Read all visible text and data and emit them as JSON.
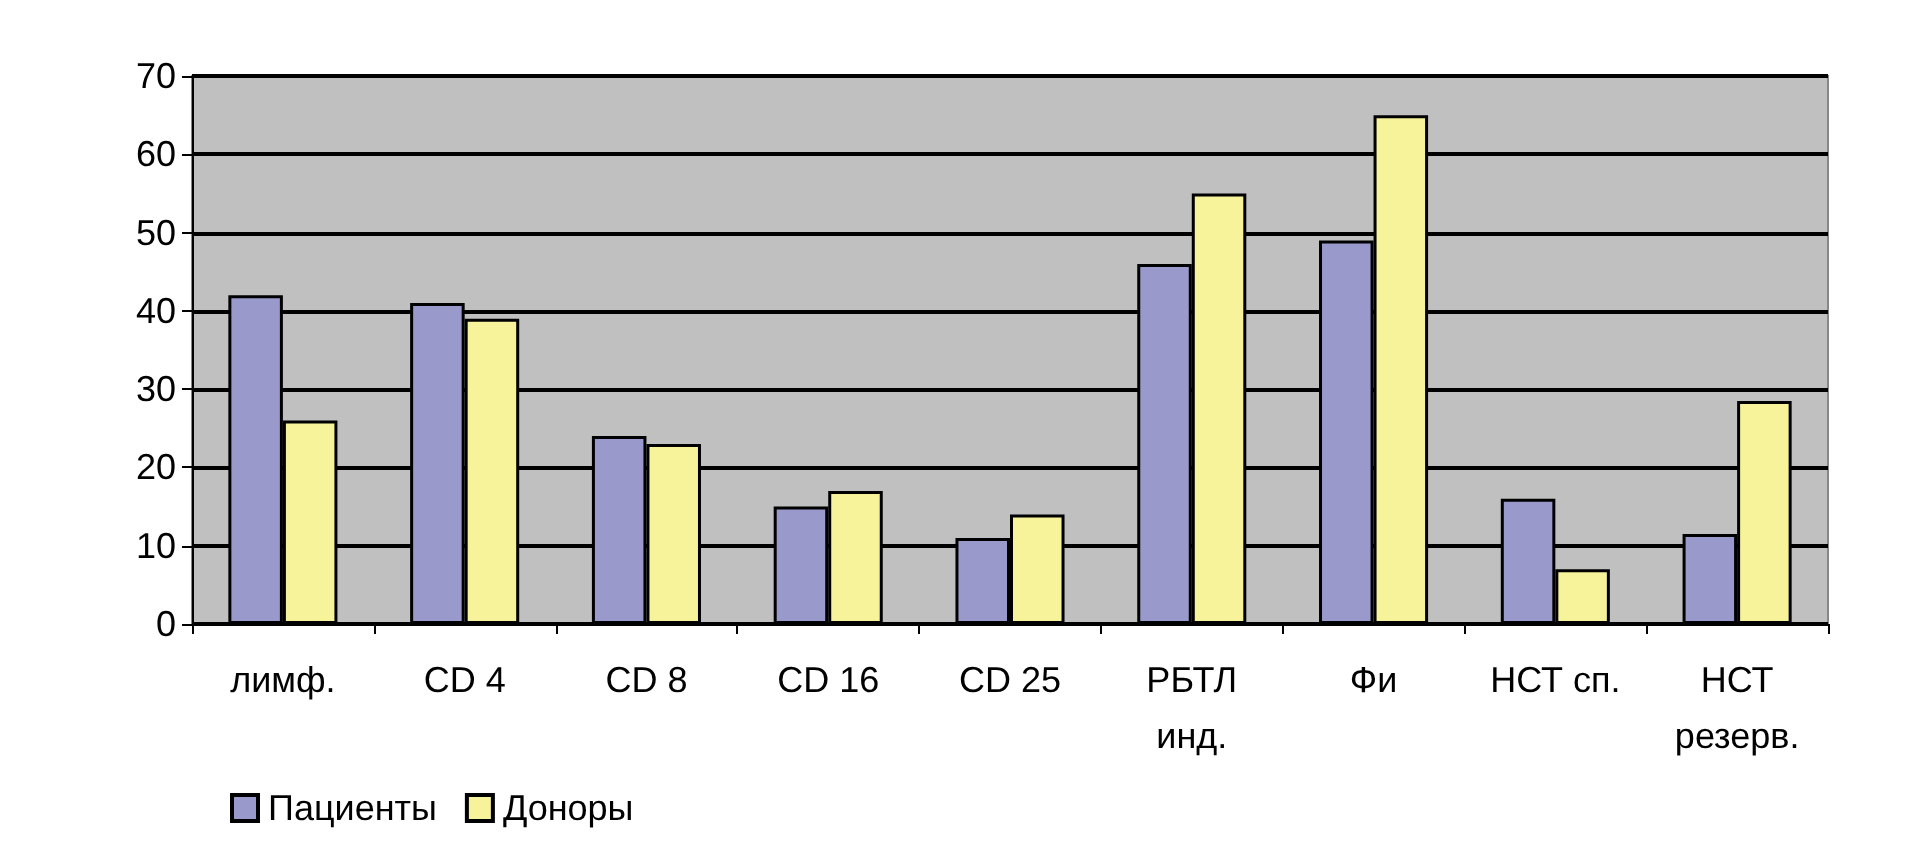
{
  "chart_data": {
    "type": "bar",
    "categories": [
      "лимф.",
      "CD 4",
      "CD 8",
      "CD 16",
      "CD 25",
      "РБТЛ\nинд.",
      "Фи",
      "НСТ сп.",
      "НСТ\nрезерв."
    ],
    "series": [
      {
        "name": "Пациенты",
        "color": "#9999cc",
        "values": [
          42,
          41,
          24,
          15,
          11,
          46,
          49,
          16,
          11.5
        ]
      },
      {
        "name": "Доноры",
        "color": "#f7f39a",
        "values": [
          26,
          39,
          23,
          17,
          14,
          55,
          65,
          7,
          28.5
        ]
      }
    ],
    "ylim": [
      0,
      70
    ],
    "yticks": [
      0,
      10,
      20,
      30,
      40,
      50,
      60,
      70
    ],
    "grid": "y",
    "legend": "bottom left"
  }
}
